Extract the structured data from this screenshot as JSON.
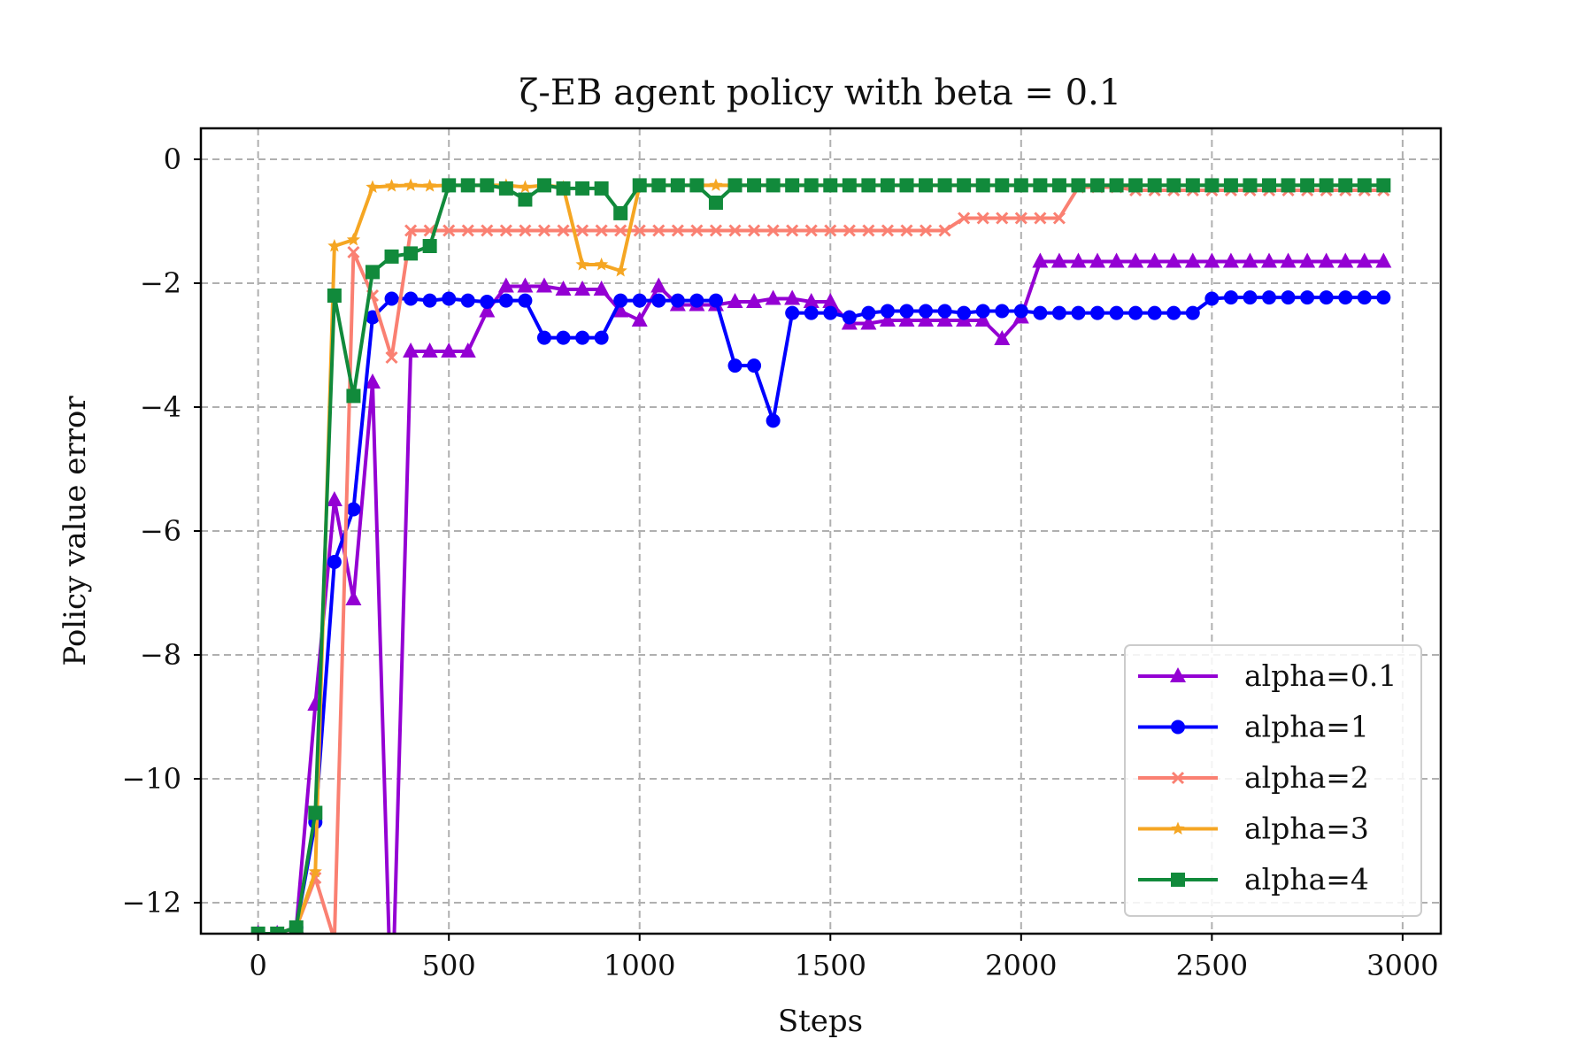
{
  "chart_data": {
    "type": "line",
    "title": "ζ-EB agent policy with beta = 0.1",
    "xlabel": "Steps",
    "ylabel": "Policy value error",
    "xlim": [
      -150,
      3100
    ],
    "ylim": [
      -12.5,
      0.5
    ],
    "xticks": [
      0,
      500,
      1000,
      1500,
      2000,
      2500,
      3000
    ],
    "yticks": [
      0,
      -2,
      -4,
      -6,
      -8,
      -10,
      -12
    ],
    "xtick_labels": [
      "0",
      "500",
      "1000",
      "1500",
      "2000",
      "2500",
      "3000"
    ],
    "ytick_labels": [
      "0",
      "−2",
      "−4",
      "−6",
      "−8",
      "−10",
      "−12"
    ],
    "grid": true,
    "legend_position": "lower-right",
    "x": [
      0,
      50,
      100,
      150,
      200,
      250,
      300,
      350,
      400,
      450,
      500,
      550,
      600,
      650,
      700,
      750,
      800,
      850,
      900,
      950,
      1000,
      1050,
      1100,
      1150,
      1200,
      1250,
      1300,
      1350,
      1400,
      1450,
      1500,
      1550,
      1600,
      1650,
      1700,
      1750,
      1800,
      1850,
      1900,
      1950,
      2000,
      2050,
      2100,
      2150,
      2200,
      2250,
      2300,
      2350,
      2400,
      2450,
      2500,
      2550,
      2600,
      2650,
      2700,
      2750,
      2800,
      2850,
      2900,
      2950
    ],
    "series": [
      {
        "name": "alpha=0.1",
        "color": "#9400d3",
        "marker": "triangle",
        "values": [
          -12.5,
          -12.5,
          -12.4,
          -8.8,
          -5.5,
          -7.1,
          -3.6,
          -14.0,
          -3.1,
          -3.1,
          -3.1,
          -3.1,
          -2.45,
          -2.05,
          -2.05,
          -2.05,
          -2.1,
          -2.1,
          -2.1,
          -2.45,
          -2.6,
          -2.05,
          -2.35,
          -2.35,
          -2.35,
          -2.3,
          -2.3,
          -2.25,
          -2.25,
          -2.3,
          -2.3,
          -2.65,
          -2.65,
          -2.6,
          -2.6,
          -2.6,
          -2.6,
          -2.6,
          -2.6,
          -2.9,
          -2.55,
          -1.65,
          -1.65,
          -1.65,
          -1.65,
          -1.65,
          -1.65,
          -1.65,
          -1.65,
          -1.65,
          -1.65,
          -1.65,
          -1.65,
          -1.65,
          -1.65,
          -1.65,
          -1.65,
          -1.65,
          -1.65,
          -1.65
        ]
      },
      {
        "name": "alpha=1",
        "color": "#0000ff",
        "marker": "circle",
        "values": [
          -12.5,
          -12.5,
          -12.4,
          -10.7,
          -6.5,
          -5.65,
          -2.55,
          -2.25,
          -2.25,
          -2.28,
          -2.25,
          -2.28,
          -2.3,
          -2.28,
          -2.28,
          -2.88,
          -2.88,
          -2.88,
          -2.88,
          -2.28,
          -2.28,
          -2.28,
          -2.28,
          -2.28,
          -2.28,
          -3.33,
          -3.33,
          -4.22,
          -2.48,
          -2.48,
          -2.48,
          -2.55,
          -2.48,
          -2.45,
          -2.45,
          -2.45,
          -2.45,
          -2.48,
          -2.45,
          -2.45,
          -2.45,
          -2.48,
          -2.48,
          -2.48,
          -2.48,
          -2.48,
          -2.48,
          -2.48,
          -2.48,
          -2.48,
          -2.25,
          -2.23,
          -2.23,
          -2.23,
          -2.23,
          -2.23,
          -2.23,
          -2.23,
          -2.23,
          -2.23
        ]
      },
      {
        "name": "alpha=2",
        "color": "#fa8072",
        "marker": "x",
        "values": [
          -12.5,
          -12.5,
          -12.4,
          -11.6,
          -12.6,
          -1.5,
          -2.2,
          -3.2,
          -1.15,
          -1.15,
          -1.15,
          -1.15,
          -1.15,
          -1.15,
          -1.15,
          -1.15,
          -1.15,
          -1.15,
          -1.15,
          -1.15,
          -1.15,
          -1.15,
          -1.15,
          -1.15,
          -1.15,
          -1.15,
          -1.15,
          -1.15,
          -1.15,
          -1.15,
          -1.15,
          -1.15,
          -1.15,
          -1.15,
          -1.15,
          -1.15,
          -1.15,
          -0.95,
          -0.95,
          -0.95,
          -0.95,
          -0.95,
          -0.95,
          -0.45,
          -0.45,
          -0.45,
          -0.5,
          -0.5,
          -0.5,
          -0.5,
          -0.5,
          -0.5,
          -0.5,
          -0.5,
          -0.5,
          -0.5,
          -0.5,
          -0.5,
          -0.5,
          -0.5
        ]
      },
      {
        "name": "alpha=3",
        "color": "#f5a623",
        "marker": "star",
        "values": [
          -12.5,
          -12.5,
          -12.4,
          -11.5,
          -1.4,
          -1.3,
          -0.45,
          -0.43,
          -0.42,
          -0.43,
          -0.42,
          -0.42,
          -0.42,
          -0.42,
          -0.45,
          -0.42,
          -0.45,
          -1.7,
          -1.7,
          -1.8,
          -0.42,
          -0.42,
          -0.42,
          -0.42,
          -0.42,
          -0.42,
          -0.42,
          -0.42,
          -0.42,
          -0.42,
          -0.42,
          -0.42,
          -0.42,
          -0.42,
          -0.42,
          -0.42,
          -0.42,
          -0.42,
          -0.42,
          -0.42,
          -0.42,
          -0.42,
          -0.42,
          -0.42,
          -0.42,
          -0.42,
          -0.42,
          -0.42,
          -0.42,
          -0.42,
          -0.42,
          -0.42,
          -0.42,
          -0.42,
          -0.42,
          -0.42,
          -0.42,
          -0.42,
          -0.42,
          -0.42
        ]
      },
      {
        "name": "alpha=4",
        "color": "#118a3b",
        "marker": "square",
        "values": [
          -12.5,
          -12.5,
          -12.4,
          -10.55,
          -2.2,
          -3.82,
          -1.82,
          -1.57,
          -1.52,
          -1.4,
          -0.42,
          -0.42,
          -0.42,
          -0.47,
          -0.65,
          -0.42,
          -0.47,
          -0.47,
          -0.47,
          -0.87,
          -0.42,
          -0.42,
          -0.42,
          -0.42,
          -0.7,
          -0.42,
          -0.42,
          -0.42,
          -0.42,
          -0.42,
          -0.42,
          -0.42,
          -0.42,
          -0.42,
          -0.42,
          -0.42,
          -0.42,
          -0.42,
          -0.42,
          -0.42,
          -0.42,
          -0.42,
          -0.42,
          -0.42,
          -0.42,
          -0.42,
          -0.42,
          -0.42,
          -0.42,
          -0.42,
          -0.42,
          -0.42,
          -0.42,
          -0.42,
          -0.42,
          -0.42,
          -0.42,
          -0.42,
          -0.42,
          -0.42
        ]
      }
    ]
  }
}
